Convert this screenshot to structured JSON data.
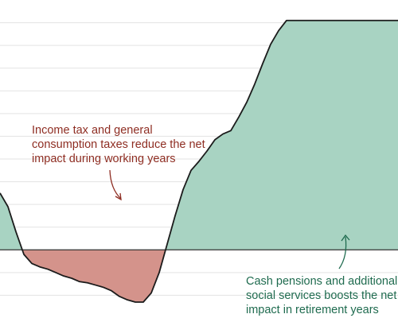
{
  "chart_data": {
    "type": "area",
    "title": "",
    "xlabel": "",
    "ylabel": "",
    "grid": true,
    "baseline": 0,
    "xlim": [
      0,
      100
    ],
    "ylim": [
      -60,
      220
    ],
    "x": [
      0,
      2,
      4,
      6,
      8,
      10,
      12,
      14,
      16,
      18,
      20,
      22,
      24,
      26,
      28,
      30,
      32,
      34,
      36,
      38,
      40,
      42,
      44,
      46,
      48,
      50,
      52,
      54,
      56,
      58,
      60,
      62,
      64,
      66,
      68,
      70,
      72,
      74,
      76,
      78,
      80,
      82,
      84,
      86,
      88,
      90,
      92,
      94,
      96,
      98,
      100
    ],
    "series": [
      {
        "values": [
          50,
          38,
          16,
          -4,
          -12,
          -15,
          -17,
          -20,
          -23,
          -25,
          -28,
          -29,
          -31,
          -33,
          -36,
          -41,
          -44,
          -46,
          -46,
          -38,
          -20,
          5,
          30,
          53,
          70,
          78,
          87,
          97,
          102,
          105,
          117,
          130,
          146,
          164,
          181,
          193,
          202,
          202,
          202,
          202,
          202,
          202,
          202,
          202,
          202,
          202,
          202,
          202,
          202,
          202,
          202
        ]
      }
    ],
    "fill_positive": "#a8d3c2",
    "fill_negative": "#d4938b",
    "line_color": "#1b1b1b",
    "annotations": [
      {
        "id": "working",
        "lines": [
          "Income tax and general",
          "consumption taxes reduce the net",
          "impact during working years"
        ],
        "color": "#8e2d22"
      },
      {
        "id": "retirement",
        "lines": [
          "Cash pensions and additional",
          "social services boosts the net",
          "impact in retirement years"
        ],
        "color": "#1f6b4f"
      }
    ]
  }
}
